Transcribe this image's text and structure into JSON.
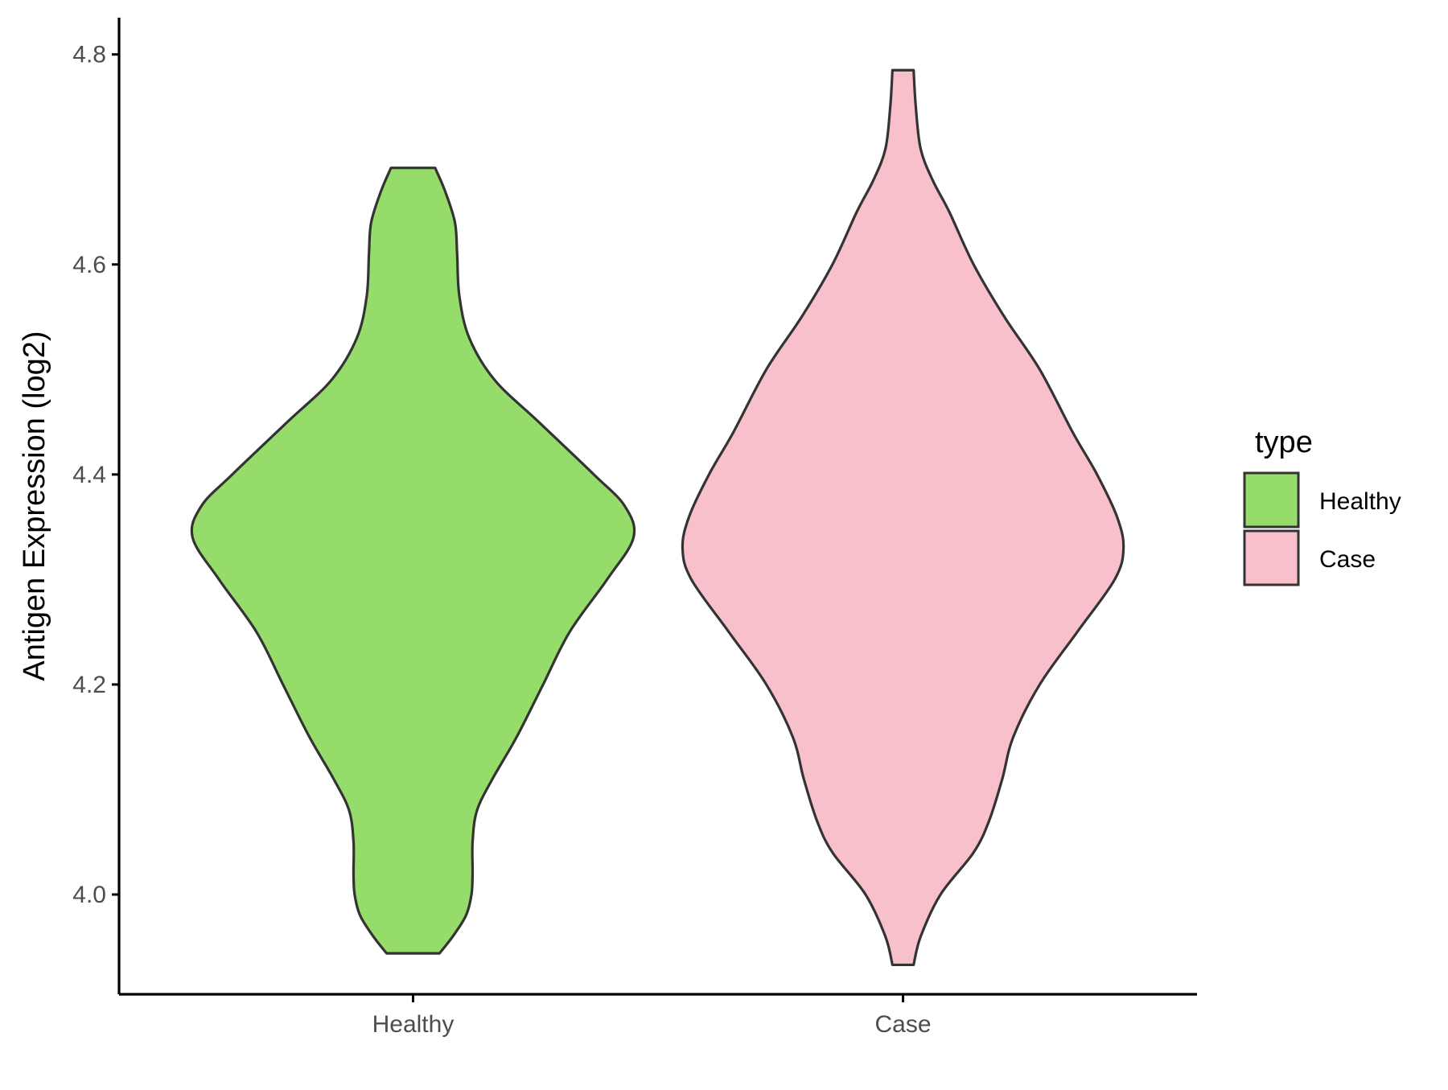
{
  "chart_data": {
    "type": "violin",
    "title": "",
    "xlabel": "",
    "ylabel": "Antigen Expression (log2)",
    "ylim": [
      3.905,
      4.835
    ],
    "y_ticks": [
      4.0,
      4.2,
      4.4,
      4.6,
      4.8
    ],
    "y_tick_labels": [
      "4.0",
      "4.2",
      "4.4",
      "4.6",
      "4.8"
    ],
    "categories": [
      "Healthy",
      "Case"
    ],
    "grid": false,
    "legend": {
      "title": "type",
      "position": "right",
      "entries": [
        "Healthy",
        "Case"
      ]
    },
    "series": [
      {
        "name": "Healthy",
        "color": "#95dc6a",
        "min": 3.944,
        "max": 4.692,
        "density_profile": [
          [
            3.944,
            0.12
          ],
          [
            3.96,
            0.18
          ],
          [
            3.98,
            0.24
          ],
          [
            4.0,
            0.265
          ],
          [
            4.02,
            0.27
          ],
          [
            4.05,
            0.27
          ],
          [
            4.08,
            0.29
          ],
          [
            4.11,
            0.36
          ],
          [
            4.15,
            0.47
          ],
          [
            4.2,
            0.59
          ],
          [
            4.25,
            0.71
          ],
          [
            4.3,
            0.88
          ],
          [
            4.34,
            1.0
          ],
          [
            4.37,
            0.96
          ],
          [
            4.4,
            0.82
          ],
          [
            4.45,
            0.57
          ],
          [
            4.49,
            0.37
          ],
          [
            4.53,
            0.255
          ],
          [
            4.57,
            0.21
          ],
          [
            4.61,
            0.2
          ],
          [
            4.64,
            0.19
          ],
          [
            4.67,
            0.145
          ],
          [
            4.692,
            0.1
          ]
        ]
      },
      {
        "name": "Case",
        "color": "#f7c0cb",
        "min": 3.933,
        "max": 4.785,
        "density_profile": [
          [
            3.933,
            0.048
          ],
          [
            3.96,
            0.08
          ],
          [
            4.0,
            0.17
          ],
          [
            4.04,
            0.32
          ],
          [
            4.07,
            0.39
          ],
          [
            4.11,
            0.45
          ],
          [
            4.15,
            0.5
          ],
          [
            4.2,
            0.62
          ],
          [
            4.25,
            0.79
          ],
          [
            4.3,
            0.96
          ],
          [
            4.33,
            1.0
          ],
          [
            4.36,
            0.97
          ],
          [
            4.4,
            0.88
          ],
          [
            4.44,
            0.77
          ],
          [
            4.5,
            0.62
          ],
          [
            4.55,
            0.46
          ],
          [
            4.6,
            0.32
          ],
          [
            4.65,
            0.21
          ],
          [
            4.68,
            0.135
          ],
          [
            4.71,
            0.08
          ],
          [
            4.75,
            0.058
          ],
          [
            4.785,
            0.048
          ]
        ]
      }
    ]
  }
}
